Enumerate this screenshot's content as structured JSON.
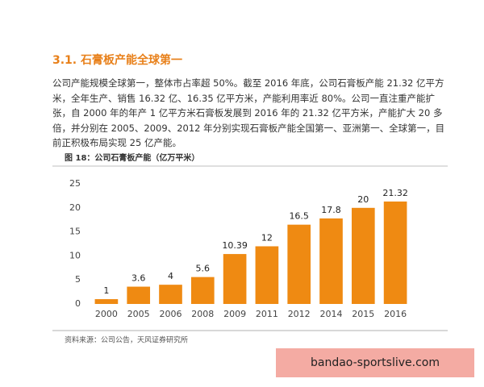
{
  "section_title": "3.1. 石膏板产能全球第一",
  "paragraph": "公司产能规模全球第一，整体市占率超 50%。截至 2016 年底，公司石膏板产能 21.32 亿平方米，全年生产、销售 16.32 亿、16.35 亿平方米，产能利用率近 80%。公司一直注重产能扩张，自 2000 年的年产 1 亿平方米石膏板发展到 2016 年的 21.32 亿平方米，产能扩大 20 多倍，并分别在 2005、2009、2012 年分别实现石膏板产能全国第一、亚洲第一、全球第一，目前正积极布局实现 25 亿产能。",
  "chart_data": {
    "type": "bar",
    "title": "图 18：公司石膏板产能（亿万平米）",
    "categories": [
      "2000",
      "2005",
      "2006",
      "2008",
      "2009",
      "2011",
      "2012",
      "2014",
      "2015",
      "2016"
    ],
    "values": [
      1,
      3.6,
      4,
      5.6,
      10.39,
      12,
      16.5,
      17.8,
      20,
      21.32
    ],
    "color": "#ef8a12",
    "ylim": [
      0,
      25
    ],
    "yticks": [
      0,
      5,
      10,
      15,
      20,
      25
    ],
    "grid": false
  },
  "source": "资料来源：公司公告，天风证券研究所",
  "watermark": "bandao-sportslive.com"
}
